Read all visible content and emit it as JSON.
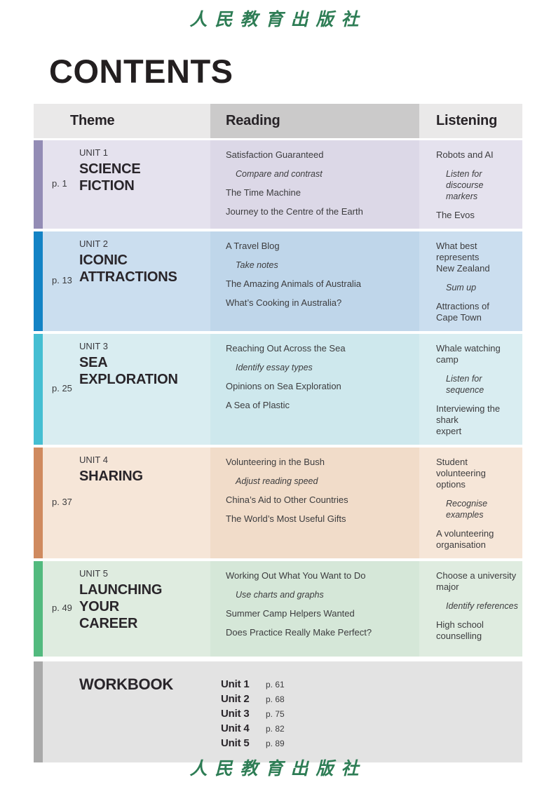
{
  "publisher": {
    "name": "人民教育出版社",
    "color": "#2e7d55"
  },
  "page_title": "CONTENTS",
  "table": {
    "headers": [
      {
        "label": "Theme",
        "bg": "#eae9e9"
      },
      {
        "label": "Reading",
        "bg": "#cbcaca"
      },
      {
        "label": "Listening",
        "bg": "#eae9e9"
      }
    ],
    "units": [
      {
        "page": "p. 1",
        "unit_label": "UNIT 1",
        "title_lines": [
          "SCIENCE",
          "FICTION"
        ],
        "colors": {
          "bar": "#938cb5",
          "cell": "#e5e2ee",
          "reading_cell": "#dcd8e7"
        },
        "reading": [
          {
            "text": "Satisfaction Guaranteed",
            "type": "text"
          },
          {
            "text": "Compare and contrast",
            "type": "strategy"
          },
          {
            "text": "The Time Machine",
            "type": "text"
          },
          {
            "text": "Journey to the Centre of the Earth",
            "type": "text"
          }
        ],
        "listening": [
          {
            "text": "Robots and AI",
            "type": "text"
          },
          {
            "text": "Listen for discourse\nmarkers",
            "type": "strategy"
          },
          {
            "text": "The Evos",
            "type": "text"
          }
        ]
      },
      {
        "page": "p. 13",
        "unit_label": "UNIT 2",
        "title_lines": [
          "ICONIC",
          "ATTRACTIONS"
        ],
        "colors": {
          "bar": "#1383c5",
          "cell": "#cbdeef",
          "reading_cell": "#bfd6ea"
        },
        "reading": [
          {
            "text": "A Travel Blog",
            "type": "text"
          },
          {
            "text": "Take notes",
            "type": "strategy"
          },
          {
            "text": "The Amazing Animals of Australia",
            "type": "text"
          },
          {
            "text": "What’s Cooking in Australia?",
            "type": "text"
          }
        ],
        "listening": [
          {
            "text": "What best represents\nNew Zealand",
            "type": "text"
          },
          {
            "text": "Sum up",
            "type": "strategy"
          },
          {
            "text": "Attractions of\nCape Town",
            "type": "text"
          }
        ]
      },
      {
        "page": "p. 25",
        "unit_label": "UNIT 3",
        "title_lines": [
          "SEA",
          "EXPLORATION"
        ],
        "colors": {
          "bar": "#45bed2",
          "cell": "#d9edf1",
          "reading_cell": "#cee8ed"
        },
        "reading": [
          {
            "text": "Reaching Out Across the Sea",
            "type": "text"
          },
          {
            "text": "Identify essay types",
            "type": "strategy"
          },
          {
            "text": "Opinions on Sea Exploration",
            "type": "text"
          },
          {
            "text": "A Sea of Plastic",
            "type": "text"
          }
        ],
        "listening": [
          {
            "text": "Whale watching camp",
            "type": "text"
          },
          {
            "text": "Listen for sequence",
            "type": "strategy"
          },
          {
            "text": "Interviewing the shark\nexpert",
            "type": "text"
          }
        ]
      },
      {
        "page": "p. 37",
        "unit_label": "UNIT 4",
        "title_lines": [
          "SHARING"
        ],
        "colors": {
          "bar": "#cf8a5f",
          "cell": "#f6e6d8",
          "reading_cell": "#f1dcc9"
        },
        "reading": [
          {
            "text": "Volunteering in the Bush",
            "type": "text"
          },
          {
            "text": "Adjust reading speed",
            "type": "strategy"
          },
          {
            "text": "China’s Aid to Other Countries",
            "type": "text"
          },
          {
            "text": "The World’s Most Useful Gifts",
            "type": "text"
          }
        ],
        "listening": [
          {
            "text": "Student volunteering\noptions",
            "type": "text"
          },
          {
            "text": "Recognise examples",
            "type": "strategy"
          },
          {
            "text": "A volunteering\norganisation",
            "type": "text"
          }
        ]
      },
      {
        "page": "p. 49",
        "unit_label": "UNIT 5",
        "title_lines": [
          "LAUNCHING",
          "YOUR",
          "CAREER"
        ],
        "colors": {
          "bar": "#52ba7e",
          "cell": "#dfece0",
          "reading_cell": "#d5e7d8"
        },
        "reading": [
          {
            "text": "Working Out What You Want to Do",
            "type": "text"
          },
          {
            "text": "Use charts and graphs",
            "type": "strategy"
          },
          {
            "text": "Summer Camp Helpers Wanted",
            "type": "text"
          },
          {
            "text": "Does Practice Really Make Perfect?",
            "type": "text"
          }
        ],
        "listening": [
          {
            "text": "Choose a university\nmajor",
            "type": "text"
          },
          {
            "text": "Identify references",
            "type": "strategy"
          },
          {
            "text": "High school\ncounselling",
            "type": "text"
          }
        ]
      }
    ]
  },
  "workbook": {
    "title": "WORKBOOK",
    "colors": {
      "bar": "#a9a9a9",
      "cell": "#e3e3e3"
    },
    "items": [
      {
        "unit": "Unit 1",
        "page": "p. 61"
      },
      {
        "unit": "Unit 2",
        "page": "p. 68"
      },
      {
        "unit": "Unit 3",
        "page": "p. 75"
      },
      {
        "unit": "Unit 4",
        "page": "p. 82"
      },
      {
        "unit": "Unit 5",
        "page": "p. 89"
      }
    ]
  }
}
